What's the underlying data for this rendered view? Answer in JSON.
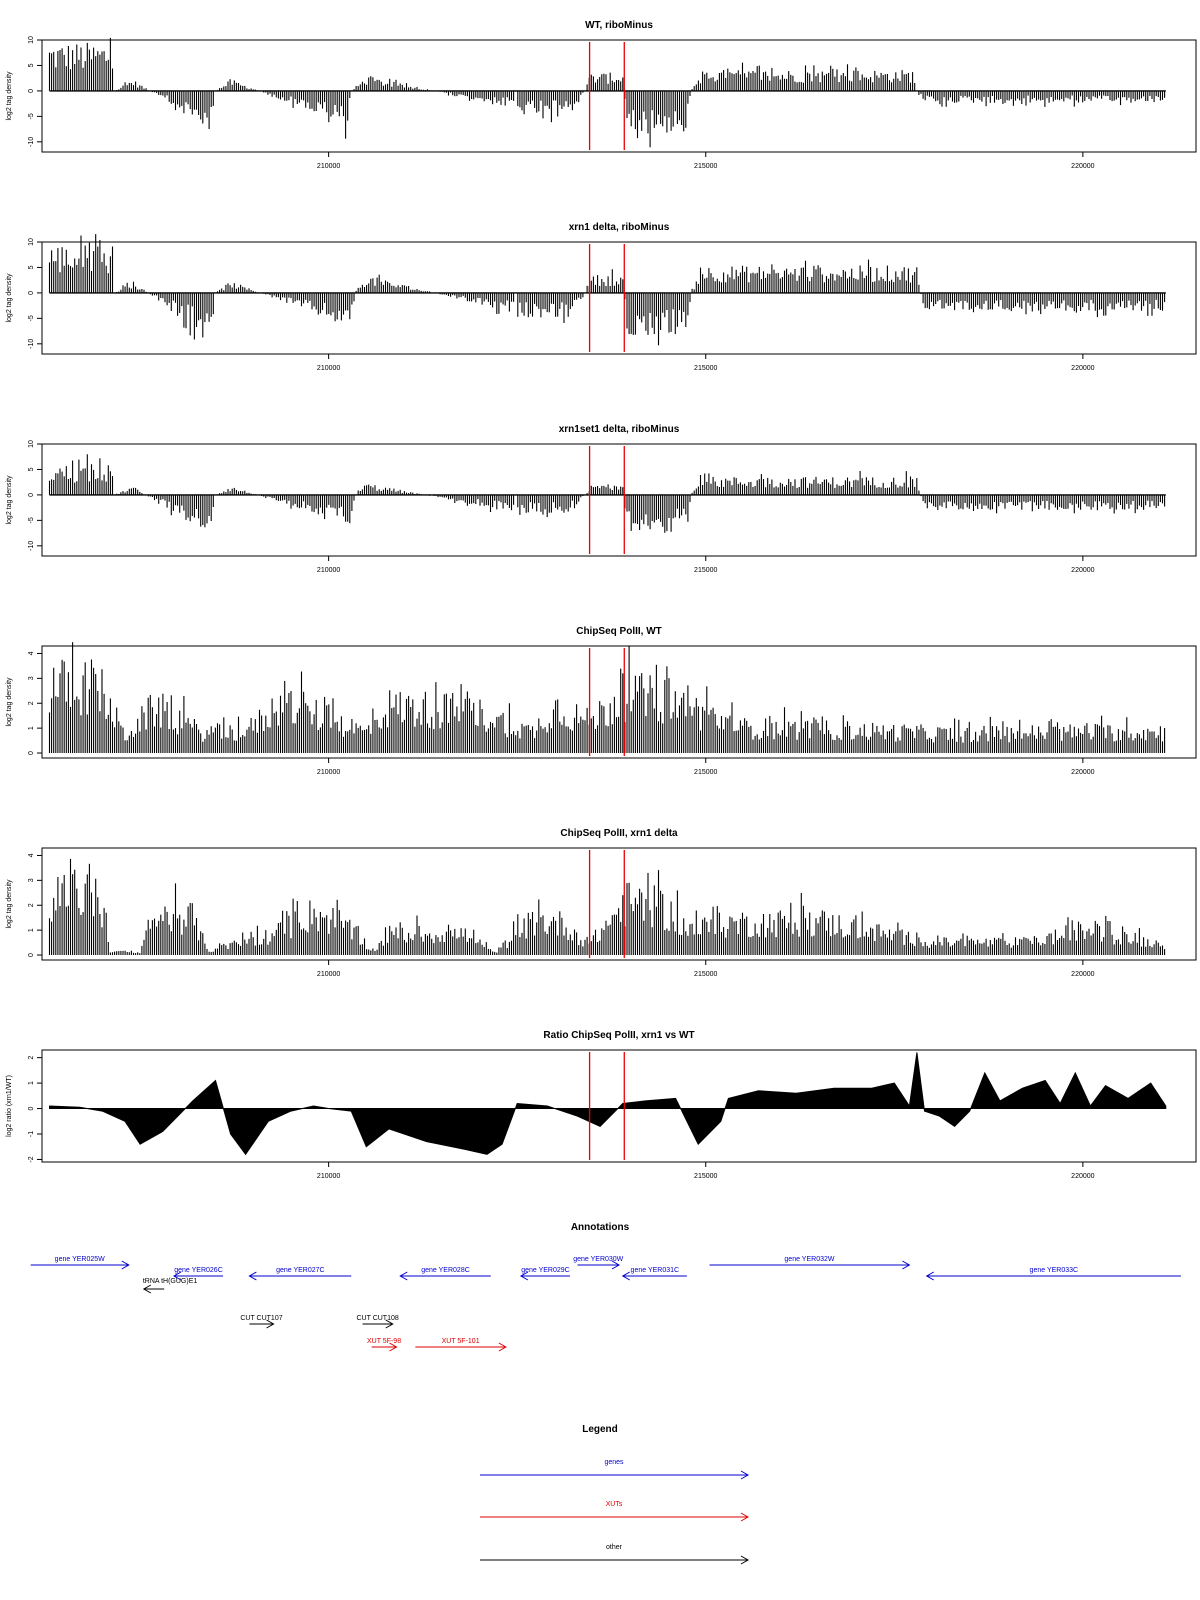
{
  "chart_data": [
    {
      "type": "bar",
      "title": "WT, riboMinus",
      "ylabel": "log2 tag density",
      "ylim": [
        -12,
        10
      ],
      "yticks": [
        -10,
        -5,
        0,
        5,
        10
      ],
      "xlim": [
        206200,
        221500
      ],
      "xticks": [
        210000,
        215000,
        220000
      ],
      "markers": [
        213460,
        213920
      ],
      "envelope": [
        [
          206300,
          8
        ],
        [
          207150,
          8
        ],
        [
          207160,
          0
        ],
        [
          207400,
          2
        ],
        [
          208450,
          -7
        ],
        [
          208500,
          0
        ],
        [
          208700,
          2
        ],
        [
          210250,
          -6
        ],
        [
          210300,
          0
        ],
        [
          210500,
          2.5
        ],
        [
          212450,
          -3
        ],
        [
          212480,
          0
        ],
        [
          212500,
          -4
        ],
        [
          213200,
          -4
        ],
        [
          213400,
          0
        ],
        [
          213470,
          3
        ],
        [
          213900,
          3
        ],
        [
          213920,
          0
        ],
        [
          213950,
          -7
        ],
        [
          214750,
          -7
        ],
        [
          214800,
          0
        ],
        [
          214950,
          3.5
        ],
        [
          217750,
          3.5
        ],
        [
          217800,
          0
        ],
        [
          217900,
          -2
        ],
        [
          221100,
          -2
        ]
      ]
    },
    {
      "type": "bar",
      "title": "xrn1 delta, riboMinus",
      "ylabel": "log2 tag density",
      "ylim": [
        -12,
        10
      ],
      "yticks": [
        -10,
        -5,
        0,
        5,
        10
      ],
      "xlim": [
        206200,
        221500
      ],
      "xticks": [
        210000,
        215000,
        220000
      ],
      "markers": [
        213460,
        213920
      ],
      "envelope": [
        [
          206300,
          8
        ],
        [
          207150,
          8
        ],
        [
          207160,
          0
        ],
        [
          207400,
          2
        ],
        [
          208450,
          -8
        ],
        [
          208500,
          0
        ],
        [
          208700,
          2
        ],
        [
          210300,
          -6
        ],
        [
          210350,
          0
        ],
        [
          210500,
          3
        ],
        [
          212450,
          -3.5
        ],
        [
          212480,
          0
        ],
        [
          212500,
          -4
        ],
        [
          213200,
          -4
        ],
        [
          213400,
          0
        ],
        [
          213470,
          3
        ],
        [
          213900,
          3
        ],
        [
          213920,
          0
        ],
        [
          213950,
          -7
        ],
        [
          214750,
          -7
        ],
        [
          214800,
          0
        ],
        [
          214950,
          4.5
        ],
        [
          217800,
          4.5
        ],
        [
          217850,
          0
        ],
        [
          217900,
          -3
        ],
        [
          221100,
          -3
        ]
      ]
    },
    {
      "type": "bar",
      "title": "xrn1set1 delta, riboMinus",
      "ylabel": "log2 tag density",
      "ylim": [
        -12,
        10
      ],
      "yticks": [
        -10,
        -5,
        0,
        5,
        10
      ],
      "xlim": [
        206200,
        221500
      ],
      "xticks": [
        210000,
        215000,
        220000
      ],
      "markers": [
        213460,
        213920
      ],
      "envelope": [
        [
          206300,
          5
        ],
        [
          207150,
          5
        ],
        [
          207160,
          0
        ],
        [
          207400,
          1.5
        ],
        [
          208450,
          -7
        ],
        [
          208500,
          0
        ],
        [
          208700,
          1.5
        ],
        [
          210300,
          -5
        ],
        [
          210350,
          0
        ],
        [
          210500,
          2
        ],
        [
          212450,
          -3
        ],
        [
          212480,
          0
        ],
        [
          212500,
          -3
        ],
        [
          213200,
          -3
        ],
        [
          213400,
          0
        ],
        [
          213470,
          1.5
        ],
        [
          213900,
          1.5
        ],
        [
          213920,
          0
        ],
        [
          213950,
          -6
        ],
        [
          214750,
          -6
        ],
        [
          214800,
          0
        ],
        [
          214950,
          3
        ],
        [
          217800,
          3
        ],
        [
          217850,
          0
        ],
        [
          217900,
          -2.5
        ],
        [
          221100,
          -2.5
        ]
      ]
    },
    {
      "type": "bar",
      "title": "ChipSeq PolII, WT",
      "ylabel": "log2 tag density",
      "ylim": [
        -0.2,
        4.3
      ],
      "yticks": [
        0,
        1,
        2,
        3,
        4
      ],
      "xlim": [
        206200,
        221500
      ],
      "xticks": [
        210000,
        215000,
        220000
      ],
      "markers": [
        213460,
        213920
      ],
      "envelope": [
        [
          206300,
          3.2
        ],
        [
          206950,
          3.2
        ],
        [
          207300,
          0.8
        ],
        [
          207700,
          2.2
        ],
        [
          208300,
          1
        ],
        [
          208900,
          1
        ],
        [
          209400,
          2.4
        ],
        [
          210500,
          1
        ],
        [
          210800,
          2.2
        ],
        [
          211900,
          2
        ],
        [
          212700,
          1
        ],
        [
          213000,
          2.2
        ],
        [
          213450,
          1.5
        ],
        [
          213950,
          2.8
        ],
        [
          214500,
          2.5
        ],
        [
          215500,
          1.2
        ],
        [
          216800,
          1.1
        ],
        [
          218300,
          0.9
        ],
        [
          220000,
          1
        ],
        [
          221100,
          1
        ]
      ]
    },
    {
      "type": "bar",
      "title": "ChipSeq PolII, xrn1 delta",
      "ylabel": "log2 tag density",
      "ylim": [
        -0.2,
        4.3
      ],
      "yticks": [
        0,
        1,
        2,
        3,
        4
      ],
      "xlim": [
        206200,
        221500
      ],
      "xticks": [
        210000,
        215000,
        220000
      ],
      "markers": [
        213460,
        213920
      ],
      "envelope": [
        [
          206300,
          2.8
        ],
        [
          206950,
          3
        ],
        [
          207100,
          0.2
        ],
        [
          207500,
          0.1
        ],
        [
          207700,
          1.8
        ],
        [
          208200,
          1.8
        ],
        [
          208400,
          0.2
        ],
        [
          209300,
          1
        ],
        [
          209800,
          2
        ],
        [
          210200,
          1.5
        ],
        [
          210600,
          0.2
        ],
        [
          210800,
          1
        ],
        [
          211800,
          1
        ],
        [
          212200,
          0.1
        ],
        [
          212700,
          1.6
        ],
        [
          213100,
          1.5
        ],
        [
          213450,
          0.5
        ],
        [
          213950,
          2.5
        ],
        [
          214400,
          2.3
        ],
        [
          214800,
          1.2
        ],
        [
          215300,
          1.5
        ],
        [
          216500,
          1.6
        ],
        [
          217400,
          1
        ],
        [
          218000,
          0.6
        ],
        [
          219300,
          0.6
        ],
        [
          220000,
          1.2
        ],
        [
          221100,
          0.5
        ]
      ]
    },
    {
      "type": "area",
      "title": "Ratio ChipSeq PolII, xrn1 vs WT",
      "ylabel": "log2 ratio (xrn1/WT)",
      "ylim": [
        -2.1,
        2.3
      ],
      "yticks": [
        -2,
        -1,
        0,
        1,
        2
      ],
      "xlim": [
        206200,
        221500
      ],
      "xticks": [
        210000,
        215000,
        220000
      ],
      "markers": [
        213460,
        213920
      ],
      "x": [
        206300,
        206700,
        207000,
        207300,
        207500,
        207800,
        208200,
        208500,
        208700,
        208900,
        209200,
        209500,
        209800,
        210000,
        210300,
        210500,
        210800,
        211300,
        211800,
        212100,
        212300,
        212500,
        212900,
        213300,
        213600,
        213900,
        214200,
        214600,
        214900,
        215200,
        215300,
        215700,
        216200,
        216700,
        217200,
        217500,
        217700,
        217800,
        217900,
        218100,
        218300,
        218500,
        218700,
        218900,
        219200,
        219500,
        219700,
        219900,
        220100,
        220300,
        220600,
        220900,
        221100
      ],
      "values": [
        0.1,
        0.05,
        -0.1,
        -0.5,
        -1.4,
        -0.9,
        0.3,
        1.1,
        -1.0,
        -1.8,
        -0.5,
        -0.1,
        0.1,
        0.0,
        -0.1,
        -1.5,
        -0.8,
        -1.3,
        -1.6,
        -1.8,
        -1.4,
        0.2,
        0.1,
        -0.3,
        -0.7,
        0.2,
        0.3,
        0.4,
        -1.4,
        -0.5,
        0.4,
        0.7,
        0.6,
        0.8,
        0.8,
        1.0,
        0.1,
        2.2,
        -0.1,
        -0.3,
        -0.7,
        -0.1,
        1.4,
        0.3,
        0.8,
        1.1,
        0.2,
        1.4,
        0.1,
        0.9,
        0.4,
        1.0,
        0.1
      ]
    }
  ],
  "annotations": {
    "title": "Annotations",
    "items": [
      {
        "label": "gene YER025W",
        "kind": "genes",
        "strand": "+",
        "start": 206050,
        "end": 207350,
        "row": 0
      },
      {
        "label": "gene YER026C",
        "kind": "genes",
        "strand": "-",
        "start": 207950,
        "end": 208600,
        "row": 1
      },
      {
        "label": "gene YER027C",
        "kind": "genes",
        "strand": "-",
        "start": 208950,
        "end": 210300,
        "row": 1
      },
      {
        "label": "gene YER028C",
        "kind": "genes",
        "strand": "-",
        "start": 210950,
        "end": 212150,
        "row": 1
      },
      {
        "label": "gene YER029C",
        "kind": "genes",
        "strand": "-",
        "start": 212550,
        "end": 213200,
        "row": 1
      },
      {
        "label": "gene YER030W",
        "kind": "genes",
        "strand": "+",
        "start": 213300,
        "end": 213850,
        "row": 0
      },
      {
        "label": "gene YER031C",
        "kind": "genes",
        "strand": "-",
        "start": 213900,
        "end": 214750,
        "row": 1
      },
      {
        "label": "gene YER032W",
        "kind": "genes",
        "strand": "+",
        "start": 215050,
        "end": 217700,
        "row": 0
      },
      {
        "label": "gene YER033C",
        "kind": "genes",
        "strand": "-",
        "start": 217930,
        "end": 221300,
        "row": 1
      },
      {
        "label": "tRNA tH(GUG)E1",
        "kind": "other",
        "strand": "-",
        "start": 207550,
        "end": 207820,
        "row": 2
      },
      {
        "label": "CUT CUT107",
        "kind": "other",
        "strand": "+",
        "start": 208950,
        "end": 209270,
        "row": 3
      },
      {
        "label": "CUT CUT108",
        "kind": "other",
        "strand": "+",
        "start": 210450,
        "end": 210850,
        "row": 3
      },
      {
        "label": "XUT 5F-98",
        "kind": "XUTs",
        "strand": "+",
        "start": 210570,
        "end": 210900,
        "row": 4
      },
      {
        "label": "XUT 5F-101",
        "kind": "XUTs",
        "strand": "+",
        "start": 211150,
        "end": 212350,
        "row": 4
      }
    ]
  },
  "legend": {
    "title": "Legend",
    "entries": [
      {
        "label": "genes",
        "color": "#0000cc"
      },
      {
        "label": "XUTs",
        "color": "#dd0000"
      },
      {
        "label": "other",
        "color": "#000000"
      }
    ]
  },
  "colors": {
    "bars": "#000000",
    "marker": "#ee0000",
    "gene": "#0000cc",
    "xut": "#dd0000",
    "other": "#000000"
  }
}
